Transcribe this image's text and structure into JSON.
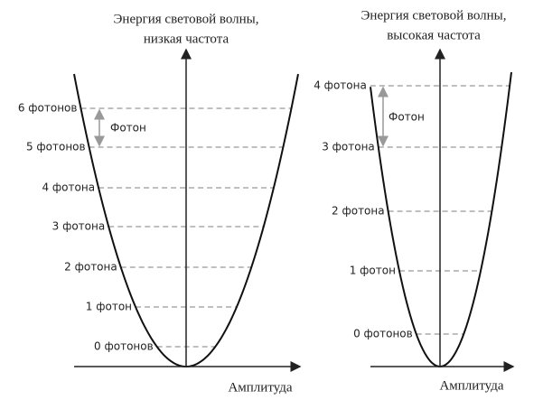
{
  "panels": [
    {
      "title": [
        "Энергия световой волны,",
        "низкая частота"
      ],
      "levels": [
        "0 фотонов",
        "1 фотон",
        "2 фотона",
        "3 фотона",
        "4 фотона",
        "5 фотонов",
        "6 фотонов"
      ],
      "photon": "Фотон",
      "axis": "Амплитуда"
    },
    {
      "title": [
        "Энергия световой волны,",
        "высокая частота"
      ],
      "levels": [
        "0 фотонов",
        "1 фотон",
        "2 фотона",
        "3 фотона",
        "4 фотона"
      ],
      "photon": "Фотон",
      "axis": "Амплитуда"
    }
  ]
}
